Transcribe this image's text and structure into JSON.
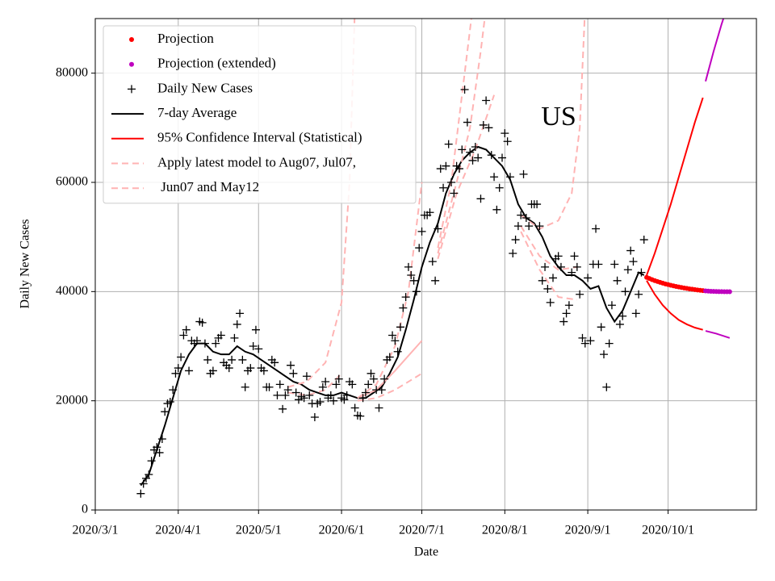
{
  "chart_data": {
    "type": "line",
    "annotation": "US",
    "xlabel": "Date",
    "ylabel": "Daily New Cases",
    "xlim": [
      "2020/3/1",
      "2020/11/3"
    ],
    "xticks": [
      "2020/3/1",
      "2020/4/1",
      "2020/5/1",
      "2020/6/1",
      "2020/7/1",
      "2020/8/1",
      "2020/9/1",
      "2020/10/1"
    ],
    "ylim": [
      0,
      90000
    ],
    "yticks": [
      0,
      20000,
      40000,
      60000,
      80000
    ],
    "grid": true,
    "legend": "upper left",
    "series": [
      {
        "name": "Projection",
        "color": "#ff0000",
        "marker": "o",
        "x": [
          "2020/9/23",
          "2020/9/24",
          "2020/9/25",
          "2020/9/26",
          "2020/9/27",
          "2020/9/28",
          "2020/9/29",
          "2020/9/30",
          "2020/10/1",
          "2020/10/2",
          "2020/10/3",
          "2020/10/4",
          "2020/10/5",
          "2020/10/6",
          "2020/10/7",
          "2020/10/8",
          "2020/10/9",
          "2020/10/10",
          "2020/10/11",
          "2020/10/12",
          "2020/10/13",
          "2020/10/14"
        ],
        "values": [
          42600,
          42400,
          42200,
          42000,
          41850,
          41700,
          41550,
          41400,
          41280,
          41160,
          41050,
          40940,
          40840,
          40750,
          40660,
          40580,
          40500,
          40430,
          40360,
          40290,
          40230,
          40170
        ]
      },
      {
        "name": "Projection (extended)",
        "color": "#bf00bf",
        "marker": "o",
        "x": [
          "2020/10/15",
          "2020/10/16",
          "2020/10/17",
          "2020/10/18",
          "2020/10/19",
          "2020/10/20",
          "2020/10/21",
          "2020/10/22",
          "2020/10/23",
          "2020/10/24"
        ],
        "values": [
          40120,
          40080,
          40050,
          40030,
          40010,
          40000,
          39990,
          39980,
          39975,
          39970
        ]
      },
      {
        "name": "Daily New Cases",
        "color": "#000000",
        "marker": "+",
        "x": [
          "2020/3/18",
          "2020/3/19",
          "2020/3/20",
          "2020/3/21",
          "2020/3/22",
          "2020/3/23",
          "2020/3/24",
          "2020/3/25",
          "2020/3/26",
          "2020/3/27",
          "2020/3/28",
          "2020/3/29",
          "2020/3/30",
          "2020/3/31",
          "2020/4/1",
          "2020/4/2",
          "2020/4/3",
          "2020/4/4",
          "2020/4/5",
          "2020/4/6",
          "2020/4/7",
          "2020/4/8",
          "2020/4/9",
          "2020/4/10",
          "2020/4/11",
          "2020/4/12",
          "2020/4/13",
          "2020/4/14",
          "2020/4/15",
          "2020/4/16",
          "2020/4/17",
          "2020/4/18",
          "2020/4/19",
          "2020/4/20",
          "2020/4/21",
          "2020/4/22",
          "2020/4/23",
          "2020/4/24",
          "2020/4/25",
          "2020/4/26",
          "2020/4/27",
          "2020/4/28",
          "2020/4/29",
          "2020/4/30",
          "2020/5/1",
          "2020/5/2",
          "2020/5/3",
          "2020/5/4",
          "2020/5/5",
          "2020/5/6",
          "2020/5/7",
          "2020/5/8",
          "2020/5/9",
          "2020/5/10",
          "2020/5/11",
          "2020/5/12",
          "2020/5/13",
          "2020/5/14",
          "2020/5/15",
          "2020/5/16",
          "2020/5/17",
          "2020/5/18",
          "2020/5/19",
          "2020/5/20",
          "2020/5/21",
          "2020/5/22",
          "2020/5/23",
          "2020/5/24",
          "2020/5/25",
          "2020/5/26",
          "2020/5/27",
          "2020/5/28",
          "2020/5/29",
          "2020/5/30",
          "2020/5/31",
          "2020/6/1",
          "2020/6/2",
          "2020/6/3",
          "2020/6/4",
          "2020/6/5",
          "2020/6/6",
          "2020/6/7",
          "2020/6/8",
          "2020/6/9",
          "2020/6/10",
          "2020/6/11",
          "2020/6/12",
          "2020/6/13",
          "2020/6/14",
          "2020/6/15",
          "2020/6/16",
          "2020/6/17",
          "2020/6/18",
          "2020/6/19",
          "2020/6/20",
          "2020/6/21",
          "2020/6/22",
          "2020/6/23",
          "2020/6/24",
          "2020/6/25",
          "2020/6/26",
          "2020/6/27",
          "2020/6/28",
          "2020/6/29",
          "2020/6/30",
          "2020/7/1",
          "2020/7/2",
          "2020/7/3",
          "2020/7/4",
          "2020/7/5",
          "2020/7/6",
          "2020/7/7",
          "2020/7/8",
          "2020/7/9",
          "2020/7/10",
          "2020/7/11",
          "2020/7/12",
          "2020/7/13",
          "2020/7/14",
          "2020/7/15",
          "2020/7/16",
          "2020/7/17",
          "2020/7/18",
          "2020/7/19",
          "2020/7/20",
          "2020/7/21",
          "2020/7/22",
          "2020/7/23",
          "2020/7/24",
          "2020/7/25",
          "2020/7/26",
          "2020/7/27",
          "2020/7/28",
          "2020/7/29",
          "2020/7/30",
          "2020/7/31",
          "2020/8/1",
          "2020/8/2",
          "2020/8/3",
          "2020/8/4",
          "2020/8/5",
          "2020/8/6",
          "2020/8/7",
          "2020/8/8",
          "2020/8/9",
          "2020/8/10",
          "2020/8/11",
          "2020/8/12",
          "2020/8/13",
          "2020/8/14",
          "2020/8/15",
          "2020/8/16",
          "2020/8/17",
          "2020/8/18",
          "2020/8/19",
          "2020/8/20",
          "2020/8/21",
          "2020/8/22",
          "2020/8/23",
          "2020/8/24",
          "2020/8/25",
          "2020/8/26",
          "2020/8/27",
          "2020/8/28",
          "2020/8/29",
          "2020/8/30",
          "2020/8/31",
          "2020/9/1",
          "2020/9/2",
          "2020/9/3",
          "2020/9/4",
          "2020/9/5",
          "2020/9/6",
          "2020/9/7",
          "2020/9/8",
          "2020/9/9",
          "2020/9/10",
          "2020/9/11",
          "2020/9/12",
          "2020/9/13",
          "2020/9/14",
          "2020/9/15",
          "2020/9/16",
          "2020/9/17",
          "2020/9/18",
          "2020/9/19",
          "2020/9/20",
          "2020/9/21",
          "2020/9/22"
        ],
        "values": [
          3000,
          4800,
          5800,
          6500,
          9000,
          11000,
          11500,
          10500,
          13000,
          18000,
          19500,
          19800,
          22000,
          25000,
          26000,
          28000,
          32000,
          33000,
          25500,
          31000,
          30500,
          31000,
          34500,
          34300,
          30500,
          27500,
          25000,
          25500,
          30500,
          31500,
          32000,
          27000,
          26500,
          26000,
          27500,
          31500,
          34000,
          36000,
          27500,
          22500,
          25500,
          26000,
          30000,
          33000,
          29500,
          26000,
          25500,
          22500,
          22500,
          27500,
          27000,
          21000,
          23000,
          18500,
          21000,
          22000,
          26500,
          25000,
          21500,
          20200,
          20800,
          20500,
          24500,
          21000,
          19500,
          17000,
          19500,
          19800,
          22500,
          23500,
          20500,
          21000,
          20000,
          23000,
          24000,
          20500,
          20200,
          21000,
          23500,
          23000,
          18700,
          17300,
          17200,
          20500,
          21500,
          23000,
          25000,
          24000,
          22000,
          18700,
          22000,
          24000,
          27500,
          28000,
          32000,
          31000,
          29000,
          33500,
          37000,
          39000,
          44500,
          43000,
          42000,
          40000,
          48000,
          51000,
          54000,
          54000,
          54500,
          45500,
          42000,
          51500,
          62500,
          59000,
          63000,
          67000,
          60000,
          58000,
          63000,
          62500,
          66000,
          77000,
          71000,
          65500,
          64000,
          66500,
          64500,
          57000,
          70500,
          75000,
          70000,
          65000,
          61000,
          55000,
          59000,
          64500,
          69000,
          67500,
          61000,
          47000,
          49500,
          52000,
          54000,
          61500,
          53500,
          52000,
          56000,
          56000,
          56000,
          52000,
          42000,
          44500,
          40500,
          38000,
          42500,
          46000,
          46500,
          44500,
          34500,
          36000,
          37500,
          43500,
          46500,
          44500,
          39500,
          31500,
          30500,
          42500,
          31000,
          45000,
          51500,
          45000,
          33500,
          28500,
          22500,
          30500,
          37500,
          45000,
          42000,
          34000,
          35500,
          40000,
          44000,
          47500,
          45500,
          36000,
          39500,
          43500,
          49500
        ]
      },
      {
        "name": "7-day Average",
        "color": "#000000",
        "linestyle": "solid",
        "x": [
          "2020/3/18",
          "2020/3/21",
          "2020/3/24",
          "2020/3/27",
          "2020/3/30",
          "2020/4/2",
          "2020/4/5",
          "2020/4/8",
          "2020/4/11",
          "2020/4/14",
          "2020/4/17",
          "2020/4/20",
          "2020/4/23",
          "2020/4/26",
          "2020/4/29",
          "2020/5/2",
          "2020/5/5",
          "2020/5/8",
          "2020/5/11",
          "2020/5/14",
          "2020/5/17",
          "2020/5/20",
          "2020/5/23",
          "2020/5/26",
          "2020/5/29",
          "2020/6/1",
          "2020/6/4",
          "2020/6/7",
          "2020/6/10",
          "2020/6/13",
          "2020/6/16",
          "2020/6/19",
          "2020/6/22",
          "2020/6/25",
          "2020/6/28",
          "2020/7/1",
          "2020/7/4",
          "2020/7/7",
          "2020/7/10",
          "2020/7/13",
          "2020/7/16",
          "2020/7/19",
          "2020/7/22",
          "2020/7/25",
          "2020/7/28",
          "2020/7/31",
          "2020/8/3",
          "2020/8/6",
          "2020/8/9",
          "2020/8/12",
          "2020/8/15",
          "2020/8/18",
          "2020/8/21",
          "2020/8/24",
          "2020/8/27",
          "2020/8/30",
          "2020/9/2",
          "2020/9/5",
          "2020/9/8",
          "2020/9/11",
          "2020/9/14",
          "2020/9/17",
          "2020/9/20",
          "2020/9/22"
        ],
        "values": [
          4500,
          6500,
          11000,
          15500,
          20500,
          25500,
          28500,
          30500,
          30500,
          29000,
          28500,
          28500,
          30000,
          29000,
          28500,
          27500,
          26500,
          25500,
          24500,
          23500,
          23000,
          22000,
          21500,
          21000,
          21000,
          21500,
          21000,
          20500,
          20500,
          21500,
          22500,
          25000,
          28000,
          33000,
          38500,
          44500,
          49000,
          52500,
          58000,
          61500,
          64000,
          65500,
          66500,
          66000,
          64500,
          63000,
          60500,
          56000,
          53500,
          52500,
          50000,
          46500,
          44500,
          43000,
          43000,
          42000,
          40500,
          41000,
          37000,
          34500,
          36500,
          40000,
          43500,
          43000
        ]
      },
      {
        "name": "95% Confidence Interval (Statistical)",
        "color": "#ff0000",
        "linestyle": "solid",
        "x": [
          "2020/9/23",
          "2020/9/26",
          "2020/9/29",
          "2020/10/2",
          "2020/10/5",
          "2020/10/8",
          "2020/10/11",
          "2020/10/14"
        ],
        "values": [
          43000,
          47000,
          51500,
          56000,
          61000,
          66000,
          71000,
          75500
        ]
      },
      {
        "name": "Apply latest model to Aug07, Jul07,",
        "color": "#ffb3b3",
        "linestyle": "dashed",
        "x": [
          "2020/8/7",
          "2020/8/14",
          "2020/8/21",
          "2020/8/26",
          "2020/8/29",
          "2020/8/31"
        ],
        "values": [
          54000,
          51500,
          53000,
          58000,
          70000,
          92000
        ]
      },
      {
        "name": " Jun07 and May12",
        "color": "#ffb3b3",
        "linestyle": "dashed",
        "x": [
          "2020/5/12",
          "2020/5/19",
          "2020/5/26",
          "2020/6/1",
          "2020/6/4",
          "2020/6/6"
        ],
        "values": [
          22500,
          23500,
          27000,
          38000,
          60000,
          92000
        ]
      },
      {
        "color": "#ff0000",
        "linestyle": "solid",
        "x": [
          "2020/9/23",
          "2020/9/26",
          "2020/9/29",
          "2020/10/2",
          "2020/10/5",
          "2020/10/8",
          "2020/10/11",
          "2020/10/14"
        ],
        "values": [
          42000,
          39500,
          37500,
          36000,
          34800,
          34000,
          33400,
          33000
        ]
      },
      {
        "color": "#bf00bf",
        "linestyle": "solid",
        "x": [
          "2020/10/15",
          "2020/10/18",
          "2020/10/21",
          "2020/10/23"
        ],
        "values": [
          78500,
          84000,
          89000,
          92000
        ]
      },
      {
        "color": "#bf00bf",
        "linestyle": "solid",
        "x": [
          "2020/10/15",
          "2020/10/19",
          "2020/10/24"
        ],
        "values": [
          32800,
          32300,
          31500
        ]
      },
      {
        "color": "#ffb3b3",
        "linestyle": "dashed",
        "x": [
          "2020/5/12",
          "2020/5/19",
          "2020/5/26",
          "2020/6/1"
        ],
        "values": [
          21500,
          21000,
          22000,
          25000
        ]
      },
      {
        "color": "#ffb3b3",
        "linestyle": "dashed",
        "x": [
          "2020/6/7",
          "2020/6/14",
          "2020/6/21",
          "2020/6/26",
          "2020/7/1"
        ],
        "values": [
          20500,
          23000,
          30000,
          40000,
          60000
        ]
      },
      {
        "color": "#ffb3b3",
        "linestyle": "dashed",
        "x": [
          "2020/6/7",
          "2020/6/14",
          "2020/6/21",
          "2020/7/1"
        ],
        "values": [
          20000,
          20500,
          22000,
          25000
        ]
      },
      {
        "color": "#ffb3b3",
        "linestyle": "solid",
        "x": [
          "2020/6/7",
          "2020/6/14",
          "2020/6/21",
          "2020/7/1"
        ],
        "values": [
          20500,
          22000,
          25500,
          31000
        ]
      },
      {
        "color": "#ffb3b3",
        "linestyle": "dashed",
        "x": [
          "2020/7/7",
          "2020/7/12",
          "2020/7/17",
          "2020/7/20"
        ],
        "values": [
          48000,
          60000,
          80000,
          92000
        ]
      },
      {
        "color": "#ffb3b3",
        "linestyle": "dashed",
        "x": [
          "2020/7/7",
          "2020/7/14",
          "2020/7/19",
          "2020/7/23",
          "2020/7/25"
        ],
        "values": [
          47000,
          60000,
          70000,
          84000,
          92000
        ]
      },
      {
        "color": "#ffb3b3",
        "linestyle": "dashed",
        "x": [
          "2020/7/7",
          "2020/7/14",
          "2020/7/21",
          "2020/7/28"
        ],
        "values": [
          46000,
          58000,
          66000,
          76000
        ]
      },
      {
        "color": "#ffb3b3",
        "linestyle": "dashed",
        "x": [
          "2020/8/7",
          "2020/8/14",
          "2020/8/21",
          "2020/8/28"
        ],
        "values": [
          52000,
          46500,
          44000,
          44500
        ]
      },
      {
        "color": "#ffb3b3",
        "linestyle": "dashed",
        "x": [
          "2020/8/7",
          "2020/8/14",
          "2020/8/21",
          "2020/8/28"
        ],
        "values": [
          51000,
          44000,
          39000,
          38500
        ]
      }
    ]
  }
}
